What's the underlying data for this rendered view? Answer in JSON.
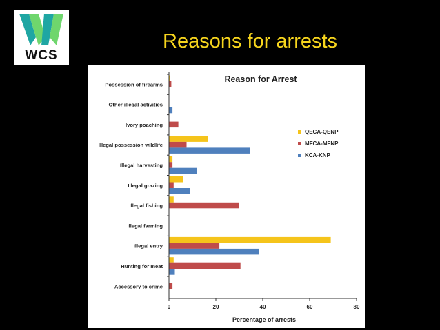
{
  "slide": {
    "title": "Reasons for arrests",
    "logo_text": "WCS"
  },
  "colors": {
    "QECA-QENP": "#f5c41b",
    "MFCA-MFNP": "#bf4b4a",
    "KCA-KNP": "#4f80bd",
    "logo_green_light": "#6fd66d",
    "logo_teal": "#1fa6a3",
    "title": "#f7d51d"
  },
  "chart_data": {
    "type": "bar",
    "orientation": "horizontal",
    "title": "Reason for Arrest",
    "xlabel": "Percentage of arrests",
    "ylabel": "",
    "xlim": [
      0,
      80
    ],
    "xticks": [
      0,
      20,
      40,
      60,
      80
    ],
    "grid": false,
    "legend_position": "right",
    "categories": [
      "Possession of firearms",
      "Other illegal activities",
      "Ivory poaching",
      "Illegal possession wildlife",
      "Illegal harvesting",
      "Illegal grazing",
      "Illegal fishing",
      "Illegal farming",
      "Illegal entry",
      "Hunting for meat",
      "Accessory to crime"
    ],
    "series": [
      {
        "name": "QECA-QENP",
        "values": [
          0.5,
          0,
          0,
          16.5,
          1.5,
          6,
          2,
          0,
          69,
          2,
          0
        ]
      },
      {
        "name": "MFCA-MFNP",
        "values": [
          1,
          0,
          4,
          7.5,
          1.5,
          2,
          30,
          0,
          21.5,
          30.5,
          1.5
        ]
      },
      {
        "name": "KCA-KNP",
        "values": [
          0,
          1.5,
          0,
          34.5,
          12,
          9,
          0,
          0,
          38.5,
          2.5,
          0
        ]
      }
    ]
  }
}
